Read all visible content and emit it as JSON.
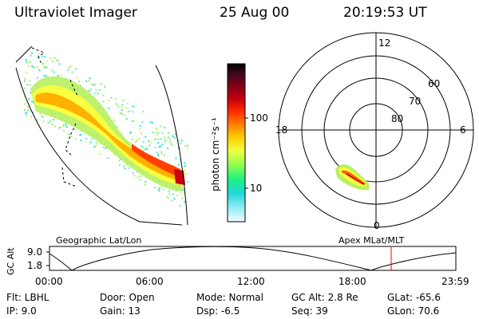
{
  "header": {
    "instrument": "Ultraviolet Imager",
    "date": "25 Aug 00",
    "time": "20:19:53 UT"
  },
  "colorbar": {
    "unit_label": "photon cm⁻²s⁻¹",
    "ticks": [
      "100",
      "10"
    ],
    "colors": [
      "#000000",
      "#3a0a1e",
      "#7a0018",
      "#c00010",
      "#ff2a00",
      "#ff7a00",
      "#ffc800",
      "#f0ff40",
      "#90ff50",
      "#20f080",
      "#20d8d8",
      "#90ecf4",
      "#f4faff"
    ]
  },
  "polar_plot": {
    "mlt_labels": {
      "top": "12",
      "left": "18",
      "right": "6",
      "bottom": "0"
    },
    "lat_labels": [
      "60",
      "70",
      "80"
    ]
  },
  "timeline": {
    "left_label": "Geographic Lat/Lon",
    "right_label": "Apex MLat/MLT",
    "ylabel": "GC Alt",
    "ytick_top": "9.0",
    "ytick_bottom": "1.8",
    "xticks": [
      "00:00",
      "06:00",
      "12:00",
      "18:00",
      "23:59"
    ],
    "marker_color": "#ff0000"
  },
  "footer": {
    "filter": "Flt: LBHL",
    "ip": "IP:  9.0",
    "door": "Door: Open",
    "gain": "Gain: 13",
    "mode": "Mode: Normal",
    "dsp": "Dsp:    -6.5",
    "gc_alt": "GC Alt: 2.8 Re",
    "seq": "Seq: 39",
    "glat": "GLat: -65.6",
    "glon": "GLon:  70.6"
  }
}
